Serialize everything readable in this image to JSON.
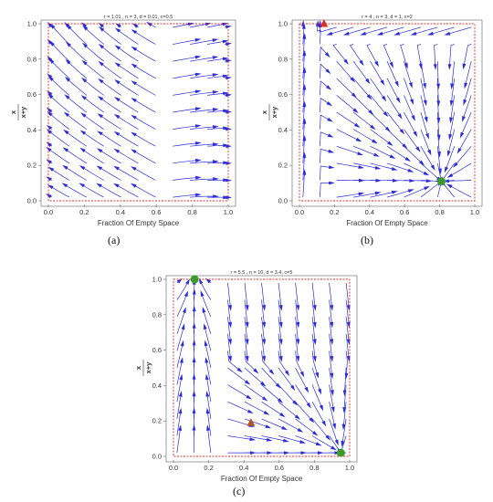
{
  "chart_data": [
    {
      "id": "a",
      "type": "streamplot",
      "title": "r = 1.01 , n = 3, d = 0.01, c=0.5",
      "caption": "(a)",
      "xlabel": "Fraction Of Empty Space",
      "ylabel_num": "x",
      "ylabel_den": "x+y",
      "xlim": [
        0,
        1
      ],
      "ylim": [
        0,
        1
      ],
      "xticks": [
        "0.0",
        "0.2",
        "0.4",
        "0.6",
        "0.8",
        "1.0"
      ],
      "yticks": [
        "0.0",
        "0.2",
        "0.4",
        "0.6",
        "0.8",
        "1.0"
      ],
      "flow_color": "#2b2bd9",
      "frame_color": "#d9302b",
      "critical_points": []
    },
    {
      "id": "b",
      "type": "streamplot",
      "title": "r = 4 , n = 3, d = 1, c=2",
      "caption": "(b)",
      "xlabel": "Fraction Of Empty Space",
      "ylabel_num": "x",
      "ylabel_den": "x+y",
      "xlim": [
        0,
        1
      ],
      "ylim": [
        0,
        1
      ],
      "xticks": [
        "0.0",
        "0.2",
        "0.4",
        "0.6",
        "0.8",
        "1.0"
      ],
      "yticks": [
        "0.0",
        "0.2",
        "0.4",
        "0.6",
        "0.8",
        "1.0"
      ],
      "flow_color": "#2b2bd9",
      "frame_color": "#d9302b",
      "critical_points": [
        {
          "x": 0.14,
          "y": 1.0,
          "kind": "unstable",
          "shape": "triangle",
          "color": "#d9302b"
        },
        {
          "x": 0.81,
          "y": 0.11,
          "kind": "stable",
          "shape": "circle",
          "color": "#3a9a2a"
        }
      ]
    },
    {
      "id": "c",
      "type": "streamplot",
      "title": "r = 5.5 , n = 10, d = 3.4, c=5",
      "caption": "(c)",
      "xlabel": "Fraction Of Empty Space",
      "ylabel_num": "x",
      "ylabel_den": "x+y",
      "xlim": [
        0,
        1
      ],
      "ylim": [
        0,
        1
      ],
      "xticks": [
        "0.0",
        "0.2",
        "0.4",
        "0.6",
        "0.8",
        "1.0"
      ],
      "yticks": [
        "0.0",
        "0.2",
        "0.4",
        "0.6",
        "0.8",
        "1.0"
      ],
      "flow_color": "#2b2bd9",
      "frame_color": "#d9302b",
      "critical_points": [
        {
          "x": 0.12,
          "y": 1.0,
          "kind": "stable",
          "shape": "circle",
          "color": "#3a9a2a"
        },
        {
          "x": 0.44,
          "y": 0.19,
          "kind": "saddle",
          "shape": "triangle",
          "color": "#b5541c"
        },
        {
          "x": 0.95,
          "y": 0.02,
          "kind": "stable",
          "shape": "circle",
          "color": "#3a9a2a"
        }
      ]
    }
  ]
}
